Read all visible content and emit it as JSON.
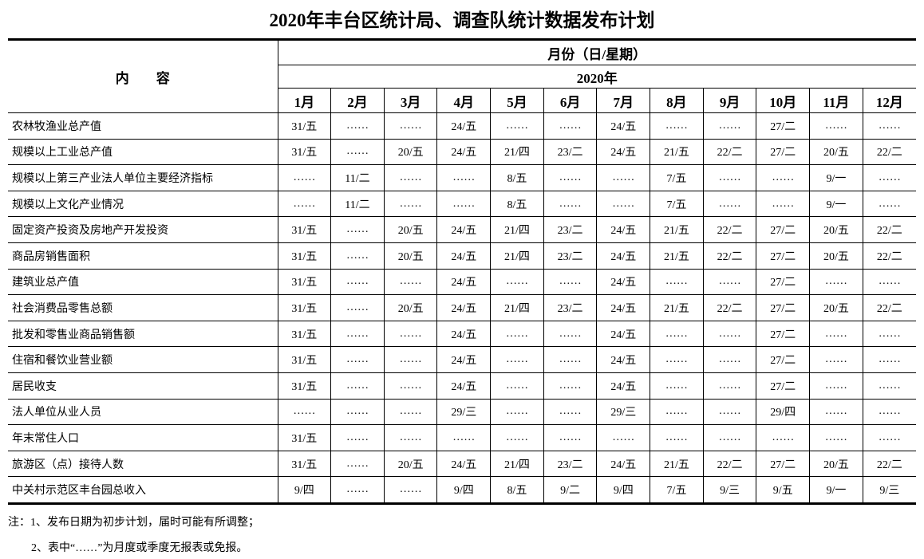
{
  "title": "2020年丰台区统计局、调查队统计数据发布计划",
  "colors": {
    "text": "#000000",
    "background": "#ffffff",
    "border": "#000000"
  },
  "table": {
    "content_header": "内　　容",
    "month_group_header": "月份（日/星期）",
    "year_header": "2020年",
    "months": [
      "1月",
      "2月",
      "3月",
      "4月",
      "5月",
      "6月",
      "7月",
      "8月",
      "9月",
      "10月",
      "11月",
      "12月"
    ],
    "empty_marker": "……",
    "rows": [
      {
        "label": "农林牧渔业总产值",
        "cells": [
          "31/五",
          "……",
          "……",
          "24/五",
          "……",
          "……",
          "24/五",
          "……",
          "……",
          "27/二",
          "……",
          "……"
        ]
      },
      {
        "label": "规模以上工业总产值",
        "cells": [
          "31/五",
          "……",
          "20/五",
          "24/五",
          "21/四",
          "23/二",
          "24/五",
          "21/五",
          "22/二",
          "27/二",
          "20/五",
          "22/二"
        ]
      },
      {
        "label": "规模以上第三产业法人单位主要经济指标",
        "cells": [
          "……",
          "11/二",
          "……",
          "……",
          "8/五",
          "……",
          "……",
          "7/五",
          "……",
          "……",
          "9/一",
          "……"
        ]
      },
      {
        "label": "规模以上文化产业情况",
        "cells": [
          "……",
          "11/二",
          "……",
          "……",
          "8/五",
          "……",
          "……",
          "7/五",
          "……",
          "……",
          "9/一",
          "……"
        ]
      },
      {
        "label": "固定资产投资及房地产开发投资",
        "cells": [
          "31/五",
          "……",
          "20/五",
          "24/五",
          "21/四",
          "23/二",
          "24/五",
          "21/五",
          "22/二",
          "27/二",
          "20/五",
          "22/二"
        ]
      },
      {
        "label": "商品房销售面积",
        "cells": [
          "31/五",
          "……",
          "20/五",
          "24/五",
          "21/四",
          "23/二",
          "24/五",
          "21/五",
          "22/二",
          "27/二",
          "20/五",
          "22/二"
        ]
      },
      {
        "label": "建筑业总产值",
        "cells": [
          "31/五",
          "……",
          "……",
          "24/五",
          "……",
          "……",
          "24/五",
          "……",
          "……",
          "27/二",
          "……",
          "……"
        ]
      },
      {
        "label": "社会消费品零售总额",
        "cells": [
          "31/五",
          "……",
          "20/五",
          "24/五",
          "21/四",
          "23/二",
          "24/五",
          "21/五",
          "22/二",
          "27/二",
          "20/五",
          "22/二"
        ]
      },
      {
        "label": "批发和零售业商品销售额",
        "cells": [
          "31/五",
          "……",
          "……",
          "24/五",
          "……",
          "……",
          "24/五",
          "……",
          "……",
          "27/二",
          "……",
          "……"
        ]
      },
      {
        "label": "住宿和餐饮业营业额",
        "cells": [
          "31/五",
          "……",
          "……",
          "24/五",
          "……",
          "……",
          "24/五",
          "……",
          "……",
          "27/二",
          "……",
          "……"
        ]
      },
      {
        "label": "居民收支",
        "cells": [
          "31/五",
          "……",
          "……",
          "24/五",
          "……",
          "……",
          "24/五",
          "……",
          "……",
          "27/二",
          "……",
          "……"
        ]
      },
      {
        "label": "法人单位从业人员",
        "cells": [
          "……",
          "……",
          "……",
          "29/三",
          "……",
          "……",
          "29/三",
          "……",
          "……",
          "29/四",
          "……",
          "……"
        ]
      },
      {
        "label": "年末常住人口",
        "cells": [
          "31/五",
          "……",
          "……",
          "……",
          "……",
          "……",
          "……",
          "……",
          "……",
          "……",
          "……",
          "……"
        ]
      },
      {
        "label": "旅游区（点）接待人数",
        "cells": [
          "31/五",
          "……",
          "20/五",
          "24/五",
          "21/四",
          "23/二",
          "24/五",
          "21/五",
          "22/二",
          "27/二",
          "20/五",
          "22/二"
        ]
      },
      {
        "label": "中关村示范区丰台园总收入",
        "cells": [
          "9/四",
          "……",
          "……",
          "9/四",
          "8/五",
          "9/二",
          "9/四",
          "7/五",
          "9/三",
          "9/五",
          "9/一",
          "9/三"
        ]
      }
    ]
  },
  "notes": [
    "注：1、发布日期为初步计划，届时可能有所调整；",
    "2、表中“……”为月度或季度无报表或免报。"
  ]
}
